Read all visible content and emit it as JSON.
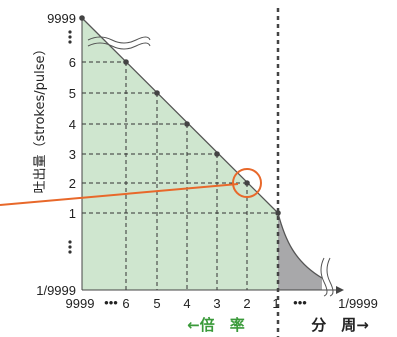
{
  "y_axis": {
    "label": "吐出量（strokes/pulse）",
    "ticks": [
      "9999",
      "6",
      "5",
      "4",
      "3",
      "2",
      "1",
      "1/9999"
    ]
  },
  "x_axis": {
    "ticks": [
      "9999",
      "6",
      "5",
      "4",
      "3",
      "2",
      "1",
      "1/9999"
    ],
    "ellipsis_left": "•••",
    "ellipsis_right": "•••"
  },
  "modes": {
    "multiply": "←倍　率",
    "divide": "分　周→"
  },
  "colors": {
    "multiply_fill": "#cfe6cf",
    "divide_fill": "#a8a8aa",
    "curve": "#555555",
    "grid": "#333333",
    "callout": "#e8682a"
  },
  "chart_data": {
    "type": "line",
    "x_direction": "reversed",
    "series": [
      {
        "x": [
          9999,
          6,
          5,
          4,
          3,
          2,
          1
        ],
        "y": [
          9999,
          6,
          5,
          4,
          3,
          2,
          1
        ]
      }
    ],
    "highlighted_point": {
      "x": 2,
      "y": 2
    },
    "grid": true
  }
}
